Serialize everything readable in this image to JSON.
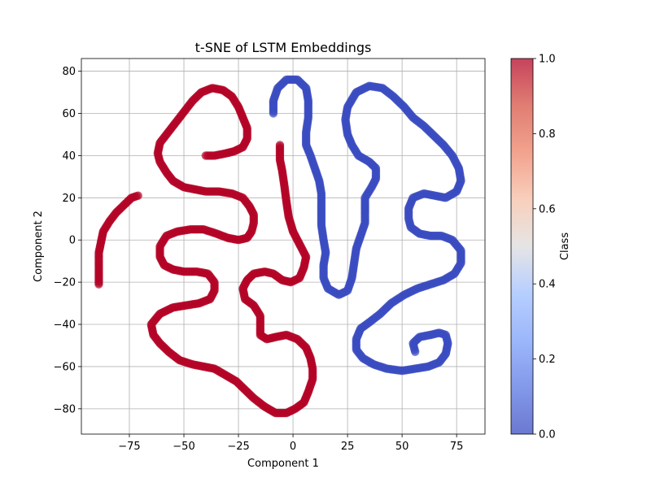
{
  "chart_data": {
    "type": "scatter",
    "title": "t-SNE of LSTM Embeddings",
    "xlabel": "Component 1",
    "ylabel": "Component 2",
    "xlim": [
      -97,
      88
    ],
    "ylim": [
      -92,
      86
    ],
    "xticks": [
      -75,
      -50,
      -25,
      0,
      25,
      50,
      75
    ],
    "xtick_labels": [
      "−75",
      "−50",
      "−25",
      "0",
      "25",
      "50",
      "75"
    ],
    "yticks": [
      -80,
      -60,
      -40,
      -20,
      0,
      20,
      40,
      60,
      80
    ],
    "ytick_labels": [
      "−80",
      "−60",
      "−40",
      "−20",
      "0",
      "20",
      "40",
      "60",
      "80"
    ],
    "grid": true,
    "colormap": "coolwarm",
    "colorbar": {
      "label": "Class",
      "range": [
        0.0,
        1.0
      ],
      "ticks": [
        0.0,
        0.2,
        0.4,
        0.6,
        0.8,
        1.0
      ],
      "tick_labels": [
        "0.0",
        "0.2",
        "0.4",
        "0.6",
        "0.8",
        "1.0"
      ]
    },
    "series": [
      {
        "class_value": 1.0,
        "color": "#b40426",
        "paths": [
          [
            [
              -71,
              21
            ],
            [
              -74,
              20
            ],
            [
              -77,
              17
            ],
            [
              -81,
              13
            ],
            [
              -84,
              9
            ],
            [
              -87,
              4
            ],
            [
              -88,
              -1
            ],
            [
              -89,
              -6
            ],
            [
              -89,
              -11
            ],
            [
              -89,
              -15
            ],
            [
              -89,
              -21
            ]
          ],
          [
            [
              -40,
              40
            ],
            [
              -36,
              40
            ],
            [
              -31,
              41
            ],
            [
              -27,
              42
            ],
            [
              -23,
              44
            ],
            [
              -21,
              48
            ],
            [
              -21,
              53
            ],
            [
              -23,
              58
            ],
            [
              -25,
              63
            ],
            [
              -28,
              68
            ],
            [
              -32,
              71
            ],
            [
              -37,
              72
            ],
            [
              -42,
              70
            ],
            [
              -46,
              66
            ],
            [
              -49,
              62
            ],
            [
              -52,
              58
            ],
            [
              -55,
              54
            ],
            [
              -58,
              50
            ],
            [
              -61,
              46
            ],
            [
              -62,
              41
            ],
            [
              -61,
              37
            ],
            [
              -58,
              32
            ],
            [
              -55,
              28
            ],
            [
              -50,
              25
            ],
            [
              -45,
              24
            ],
            [
              -40,
              23
            ],
            [
              -34,
              23
            ],
            [
              -28,
              22
            ],
            [
              -23,
              20
            ],
            [
              -20,
              16
            ],
            [
              -18,
              12
            ],
            [
              -18,
              8
            ],
            [
              -19,
              4
            ],
            [
              -21,
              1
            ],
            [
              -25,
              0
            ],
            [
              -30,
              1
            ],
            [
              -35,
              3
            ],
            [
              -41,
              5
            ],
            [
              -47,
              5
            ],
            [
              -53,
              4
            ],
            [
              -58,
              2
            ],
            [
              -61,
              -3
            ],
            [
              -61,
              -8
            ],
            [
              -59,
              -12
            ],
            [
              -55,
              -14
            ],
            [
              -50,
              -15
            ],
            [
              -44,
              -15
            ],
            [
              -39,
              -16
            ],
            [
              -36,
              -20
            ],
            [
              -36,
              -24
            ],
            [
              -38,
              -28
            ],
            [
              -43,
              -30
            ],
            [
              -49,
              -31
            ],
            [
              -55,
              -32
            ],
            [
              -61,
              -35
            ],
            [
              -65,
              -40
            ],
            [
              -64,
              -45
            ],
            [
              -61,
              -49
            ],
            [
              -57,
              -53
            ],
            [
              -52,
              -57
            ],
            [
              -46,
              -59
            ],
            [
              -41,
              -60
            ],
            [
              -36,
              -61
            ],
            [
              -31,
              -64
            ],
            [
              -26,
              -67
            ],
            [
              -22,
              -71
            ],
            [
              -18,
              -75
            ],
            [
              -13,
              -79
            ],
            [
              -8,
              -82
            ],
            [
              -3,
              -82
            ],
            [
              1,
              -80
            ],
            [
              5,
              -77
            ],
            [
              7,
              -72
            ],
            [
              9,
              -66
            ],
            [
              9,
              -61
            ],
            [
              8,
              -56
            ],
            [
              6,
              -51
            ],
            [
              2,
              -47
            ],
            [
              -3,
              -45
            ],
            [
              -8,
              -46
            ],
            [
              -12,
              -47
            ],
            [
              -15,
              -45
            ],
            [
              -15,
              -41
            ],
            [
              -15,
              -36
            ],
            [
              -18,
              -31
            ],
            [
              -22,
              -28
            ],
            [
              -23,
              -23
            ],
            [
              -21,
              -19
            ],
            [
              -18,
              -16
            ],
            [
              -13,
              -15
            ],
            [
              -9,
              -16
            ],
            [
              -5,
              -19
            ],
            [
              -1,
              -20
            ],
            [
              3,
              -18
            ],
            [
              5,
              -13
            ],
            [
              6,
              -8
            ],
            [
              3,
              -2
            ],
            [
              0,
              4
            ],
            [
              -2,
              11
            ],
            [
              -3,
              18
            ],
            [
              -4,
              26
            ],
            [
              -5,
              33
            ],
            [
              -6,
              38
            ],
            [
              -6,
              45
            ]
          ]
        ]
      },
      {
        "class_value": 0.0,
        "color": "#3b4cc0",
        "paths": [
          [
            [
              -9,
              60
            ],
            [
              -9,
              66
            ],
            [
              -7,
              72
            ],
            [
              -3,
              76
            ],
            [
              2,
              76
            ],
            [
              6,
              72
            ],
            [
              7,
              66
            ],
            [
              7,
              58
            ],
            [
              6,
              51
            ],
            [
              6,
              45
            ],
            [
              8,
              40
            ],
            [
              10,
              34
            ],
            [
              12,
              28
            ],
            [
              13,
              22
            ],
            [
              13,
              14
            ],
            [
              13,
              7
            ],
            [
              14,
              0
            ],
            [
              15,
              -6
            ],
            [
              14,
              -12
            ],
            [
              14,
              -18
            ],
            [
              16,
              -23
            ],
            [
              21,
              -26
            ],
            [
              25,
              -24
            ],
            [
              27,
              -18
            ],
            [
              28,
              -11
            ],
            [
              29,
              -4
            ],
            [
              31,
              2
            ],
            [
              33,
              8
            ],
            [
              33,
              14
            ],
            [
              33,
              20
            ],
            [
              36,
              25
            ],
            [
              38,
              29
            ],
            [
              38,
              34
            ],
            [
              35,
              37
            ],
            [
              30,
              40
            ],
            [
              27,
              45
            ],
            [
              25,
              50
            ],
            [
              24,
              57
            ],
            [
              25,
              63
            ],
            [
              29,
              70
            ],
            [
              35,
              73
            ],
            [
              41,
              72
            ],
            [
              46,
              68
            ],
            [
              51,
              63
            ],
            [
              55,
              58
            ],
            [
              60,
              54
            ],
            [
              64,
              50
            ],
            [
              69,
              45
            ],
            [
              73,
              40
            ],
            [
              76,
              34
            ],
            [
              77,
              28
            ],
            [
              75,
              23
            ],
            [
              70,
              20
            ],
            [
              65,
              21
            ],
            [
              60,
              22
            ],
            [
              55,
              20
            ],
            [
              53,
              15
            ],
            [
              53,
              10
            ],
            [
              54,
              6
            ],
            [
              58,
              3
            ],
            [
              63,
              2
            ],
            [
              68,
              2
            ],
            [
              73,
              0
            ],
            [
              77,
              -5
            ],
            [
              77,
              -11
            ],
            [
              74,
              -16
            ],
            [
              69,
              -19
            ],
            [
              63,
              -21
            ],
            [
              57,
              -23
            ],
            [
              51,
              -26
            ],
            [
              45,
              -30
            ],
            [
              40,
              -35
            ],
            [
              35,
              -39
            ],
            [
              31,
              -42
            ],
            [
              29,
              -47
            ],
            [
              29,
              -52
            ],
            [
              32,
              -56
            ],
            [
              37,
              -59
            ],
            [
              43,
              -61
            ],
            [
              50,
              -62
            ],
            [
              56,
              -61
            ],
            [
              62,
              -60
            ],
            [
              67,
              -58
            ],
            [
              70,
              -54
            ],
            [
              71,
              -49
            ],
            [
              70,
              -45
            ],
            [
              67,
              -44
            ],
            [
              63,
              -45
            ],
            [
              58,
              -46
            ],
            [
              55,
              -49
            ],
            [
              56,
              -53
            ]
          ]
        ]
      }
    ]
  }
}
